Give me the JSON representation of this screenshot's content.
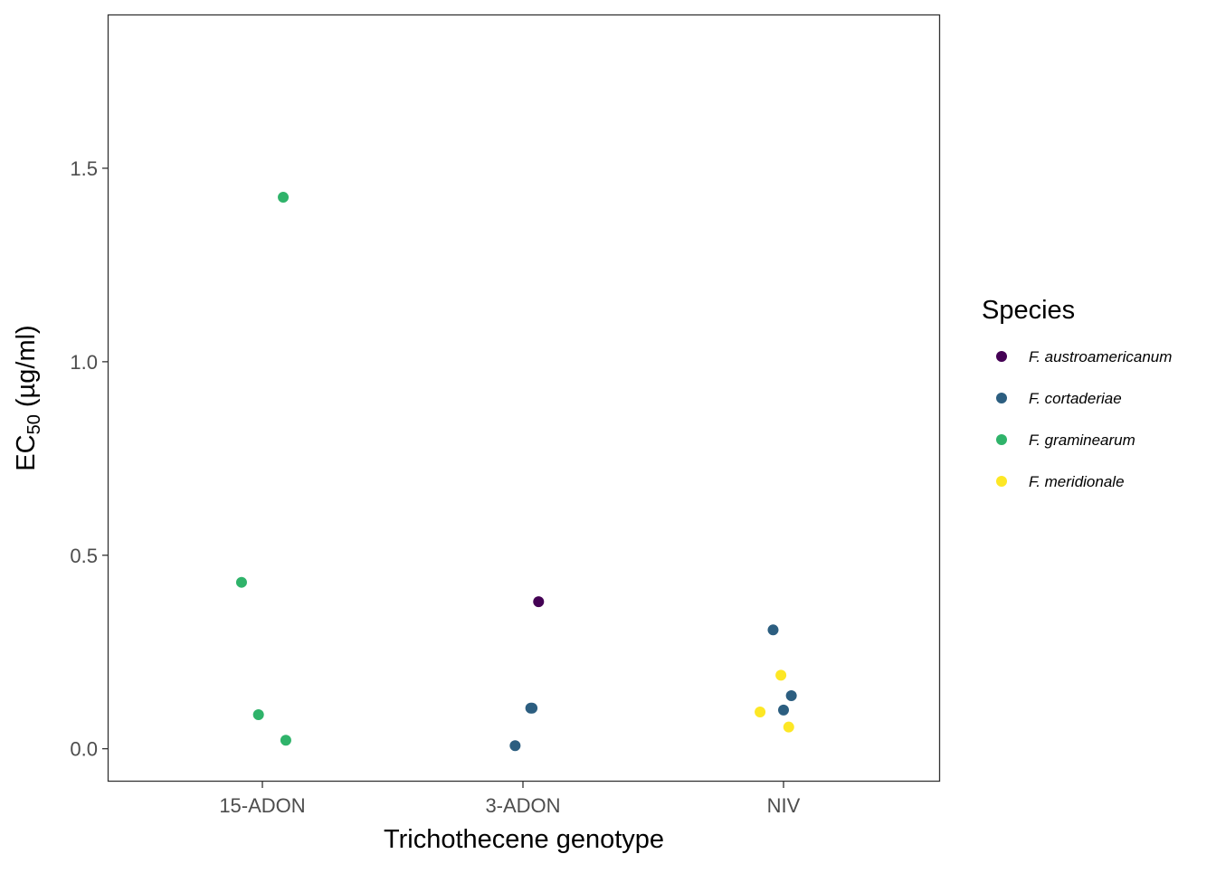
{
  "chart_data": {
    "type": "scatter",
    "title": "",
    "xlabel": "Trichothecene genotype",
    "ylabel": {
      "main": "EC",
      "subscript": "50",
      "suffix": " (µg/ml)"
    },
    "x_categories": [
      "15-ADON",
      "3-ADON",
      "NIV"
    ],
    "ylim": [
      -0.085,
      1.895
    ],
    "yticks": [
      0.0,
      0.5,
      1.0,
      1.5
    ],
    "ytick_labels": [
      "0.0",
      "0.5",
      "1.0",
      "1.5"
    ],
    "grid": false,
    "legend": {
      "title": "Species",
      "placement": "right"
    },
    "series": [
      {
        "name": "F. austroamericanum",
        "color": "#440154",
        "points": [
          {
            "x": "3-ADON",
            "jitter": 0.06,
            "y": 0.38
          }
        ]
      },
      {
        "name": "F. cortaderiae",
        "color": "#2c5e80",
        "points": [
          {
            "x": "3-ADON",
            "jitter": 0.03,
            "y": 0.105
          },
          {
            "x": "3-ADON",
            "jitter": 0.035,
            "y": 0.105
          },
          {
            "x": "3-ADON",
            "jitter": -0.03,
            "y": 0.008
          },
          {
            "x": "NIV",
            "jitter": -0.04,
            "y": 0.307
          },
          {
            "x": "NIV",
            "jitter": 0.03,
            "y": 0.137
          },
          {
            "x": "NIV",
            "jitter": 0.0,
            "y": 0.1
          }
        ]
      },
      {
        "name": "F. graminearum",
        "color": "#2fb36a",
        "points": [
          {
            "x": "15-ADON",
            "jitter": 0.08,
            "y": 1.425
          },
          {
            "x": "15-ADON",
            "jitter": -0.08,
            "y": 0.43
          },
          {
            "x": "15-ADON",
            "jitter": -0.015,
            "y": 0.088
          },
          {
            "x": "15-ADON",
            "jitter": 0.09,
            "y": 0.022
          }
        ]
      },
      {
        "name": "F. meridionale",
        "color": "#fde725",
        "points": [
          {
            "x": "NIV",
            "jitter": -0.01,
            "y": 0.19
          },
          {
            "x": "NIV",
            "jitter": -0.09,
            "y": 0.095
          },
          {
            "x": "NIV",
            "jitter": 0.02,
            "y": 0.056
          }
        ]
      }
    ]
  }
}
